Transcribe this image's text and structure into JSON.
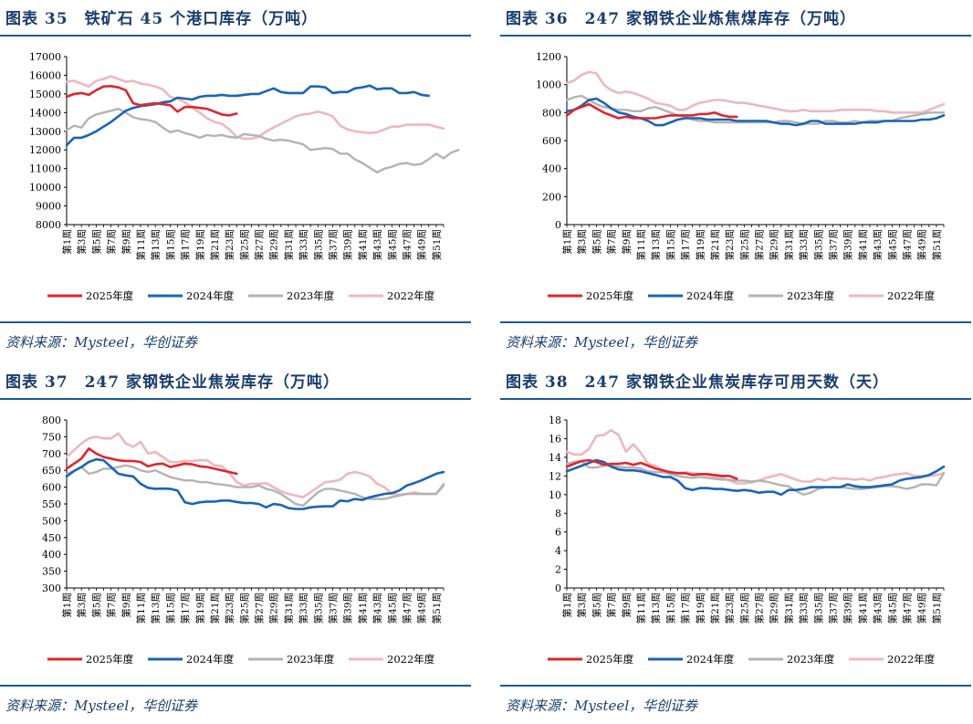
{
  "source_text": "资料来源：Mysteel，华创证券",
  "week_labels": [
    "第1周",
    "第3周",
    "第5周",
    "第7周",
    "第9周",
    "第11周",
    "第13周",
    "第15周",
    "第17周",
    "第19周",
    "第21周",
    "第23周",
    "第25周",
    "第27周",
    "第29周",
    "第31周",
    "第33周",
    "第35周",
    "第37周",
    "第39周",
    "第41周",
    "第43周",
    "第45周",
    "第47周",
    "第49周",
    "第51周"
  ],
  "colors": {
    "2025年度": "#e0252e",
    "2024年度": "#1b64b5",
    "2023年度": "#b3b3b3",
    "2022年度": "#edb8bd"
  },
  "charts": [
    {
      "id": "c35",
      "title": "图表 35　铁矿石 45 个港口库存（万吨）",
      "chart_data": {
        "type": "line",
        "ylim": [
          8000,
          17000
        ],
        "yticks": [
          8000,
          9000,
          10000,
          11000,
          12000,
          13000,
          14000,
          15000,
          16000,
          17000
        ],
        "x": "week 1-52",
        "legend_position": "bottom",
        "series": [
          {
            "name": "2025年度",
            "values": [
              14850,
              15000,
              15050,
              14950,
              15200,
              15400,
              15420,
              15350,
              15200,
              14500,
              14400,
              14450,
              14500,
              14450,
              14400,
              14050,
              14300,
              14300,
              14250,
              14200,
              14050,
              13900,
              13850,
              13950
            ]
          },
          {
            "name": "2024年度",
            "values": [
              12250,
              12650,
              12650,
              12800,
              13000,
              13250,
              13500,
              13800,
              14100,
              14250,
              14350,
              14400,
              14450,
              14550,
              14600,
              14800,
              14750,
              14700,
              14850,
              14900,
              14900,
              14950,
              14900,
              14900,
              14950,
              15000,
              15000,
              15150,
              15300,
              15100,
              15050,
              15050,
              15050,
              15400,
              15400,
              15350,
              15050,
              15100,
              15100,
              15300,
              15350,
              15450,
              15250,
              15300,
              15300,
              15050,
              15050,
              15100,
              14950,
              14900
            ]
          },
          {
            "name": "2023年度",
            "values": [
              13050,
              13300,
              13200,
              13700,
              13900,
              14000,
              14100,
              14200,
              14000,
              13750,
              13650,
              13600,
              13500,
              13200,
              12950,
              13050,
              12900,
              12800,
              12650,
              12800,
              12750,
              12800,
              12700,
              12650,
              12850,
              12800,
              12750,
              12600,
              12500,
              12550,
              12500,
              12400,
              12300,
              12000,
              12050,
              12100,
              12050,
              11800,
              11800,
              11500,
              11300,
              11050,
              10800,
              11000,
              11100,
              11250,
              11300,
              11200,
              11250,
              11500,
              11800,
              11550,
              11850,
              12000
            ]
          },
          {
            "name": "2022年度",
            "values": [
              15650,
              15700,
              15550,
              15400,
              15700,
              15800,
              15950,
              15800,
              15650,
              15700,
              15550,
              15500,
              15400,
              15250,
              14850,
              14750,
              14550,
              14250,
              14000,
              13700,
              13500,
              13400,
              13100,
              12700,
              12600,
              12600,
              12700,
              13000,
              13200,
              13400,
              13600,
              13800,
              13900,
              13950,
              14050,
              13950,
              13800,
              13300,
              13100,
              13000,
              12950,
              12900,
              12950,
              13100,
              13250,
              13250,
              13350,
              13350,
              13350,
              13350,
              13250,
              13150
            ]
          }
        ]
      }
    },
    {
      "id": "c36",
      "title": "图表 36　247 家钢铁企业炼焦煤库存（万吨）",
      "chart_data": {
        "type": "line",
        "ylim": [
          0,
          1200
        ],
        "yticks": [
          0,
          200,
          400,
          600,
          800,
          1000,
          1200
        ],
        "x": "week 1-52",
        "legend_position": "bottom",
        "series": [
          {
            "name": "2025年度",
            "values": [
              780,
              820,
              840,
              860,
              830,
              800,
              780,
              760,
              770,
              760,
              760,
              760,
              760,
              770,
              780,
              780,
              780,
              780,
              790,
              790,
              800,
              780,
              770,
              770
            ]
          },
          {
            "name": "2024年度",
            "values": [
              810,
              820,
              850,
              890,
              900,
              870,
              830,
              800,
              790,
              770,
              760,
              740,
              710,
              710,
              730,
              750,
              760,
              760,
              760,
              750,
              750,
              750,
              750,
              740,
              740,
              740,
              740,
              740,
              730,
              720,
              720,
              710,
              720,
              740,
              740,
              720,
              720,
              720,
              720,
              720,
              730,
              730,
              730,
              740,
              740,
              740,
              740,
              740,
              750,
              750,
              760,
              780
            ]
          },
          {
            "name": "2023年度",
            "values": [
              890,
              910,
              920,
              890,
              860,
              840,
              830,
              820,
              820,
              810,
              810,
              830,
              840,
              820,
              800,
              780,
              770,
              750,
              740,
              740,
              730,
              730,
              730,
              730,
              730,
              730,
              730,
              730,
              730,
              740,
              740,
              730,
              720,
              720,
              720,
              740,
              740,
              730,
              730,
              740,
              730,
              740,
              740,
              740,
              740,
              760,
              770,
              780,
              790,
              800,
              800,
              800
            ]
          },
          {
            "name": "2022年度",
            "values": [
              1010,
              1030,
              1070,
              1090,
              1080,
              1000,
              960,
              940,
              950,
              940,
              920,
              900,
              870,
              860,
              850,
              820,
              820,
              850,
              870,
              880,
              890,
              890,
              880,
              870,
              870,
              860,
              850,
              840,
              830,
              820,
              810,
              810,
              820,
              810,
              810,
              810,
              810,
              820,
              820,
              820,
              820,
              820,
              810,
              810,
              800,
              800,
              800,
              800,
              800,
              820,
              840,
              860
            ]
          }
        ]
      }
    },
    {
      "id": "c37",
      "title": "图表 37　247 家钢铁企业焦炭库存（万吨）",
      "chart_data": {
        "type": "line",
        "ylim": [
          300,
          800
        ],
        "yticks": [
          300,
          350,
          400,
          450,
          500,
          550,
          600,
          650,
          700,
          750,
          800
        ],
        "x": "week 1-52",
        "legend_position": "bottom",
        "series": [
          {
            "name": "2025年度",
            "values": [
              655,
              670,
              685,
              715,
              700,
              690,
              685,
              680,
              678,
              678,
              675,
              662,
              668,
              670,
              660,
              665,
              670,
              668,
              662,
              660,
              655,
              650,
              645,
              640
            ]
          },
          {
            "name": "2024年度",
            "values": [
              632,
              648,
              660,
              675,
              683,
              680,
              660,
              640,
              635,
              632,
              610,
              598,
              595,
              596,
              595,
              590,
              555,
              550,
              555,
              557,
              557,
              560,
              560,
              556,
              553,
              553,
              550,
              540,
              550,
              547,
              538,
              535,
              535,
              540,
              542,
              543,
              543,
              560,
              558,
              565,
              562,
              570,
              575,
              580,
              582,
              590,
              605,
              612,
              620,
              630,
              640,
              645
            ]
          },
          {
            "name": "2023年度",
            "values": [
              640,
              648,
              660,
              640,
              645,
              655,
              655,
              660,
              665,
              660,
              650,
              645,
              650,
              640,
              630,
              625,
              620,
              620,
              615,
              615,
              610,
              608,
              605,
              600,
              600,
              600,
              605,
              595,
              590,
              580,
              565,
              550,
              545,
              565,
              585,
              595,
              595,
              590,
              585,
              580,
              570,
              565,
              565,
              565,
              570,
              575,
              580,
              580,
              580,
              580,
              580,
              605
            ]
          },
          {
            "name": "2022年度",
            "values": [
              690,
              710,
              730,
              745,
              750,
              745,
              745,
              760,
              730,
              720,
              735,
              700,
              705,
              690,
              675,
              675,
              678,
              678,
              680,
              680,
              665,
              663,
              642,
              615,
              605,
              610,
              610,
              612,
              600,
              588,
              580,
              575,
              570,
              585,
              600,
              615,
              617,
              622,
              640,
              645,
              640,
              632,
              610,
              600,
              580,
              578,
              580,
              585,
              580,
              580,
              580,
              610
            ]
          }
        ]
      }
    },
    {
      "id": "c38",
      "title": "图表 38　247 家钢铁企业焦炭库存可用天数（天）",
      "chart_data": {
        "type": "line",
        "ylim": [
          0,
          18
        ],
        "yticks": [
          0,
          2,
          4,
          6,
          8,
          10,
          12,
          14,
          16,
          18
        ],
        "x": "week 1-52",
        "legend_position": "bottom",
        "series": [
          {
            "name": "2025年度",
            "values": [
              13.0,
              13.3,
              13.6,
              13.7,
              13.5,
              13.2,
              13.3,
              13.3,
              13.4,
              13.2,
              13.4,
              13.1,
              12.8,
              12.6,
              12.4,
              12.3,
              12.3,
              12.1,
              12.2,
              12.2,
              12.1,
              12.0,
              12.0,
              11.7
            ]
          },
          {
            "name": "2024年度",
            "values": [
              12.5,
              12.8,
              13.1,
              13.4,
              13.7,
              13.5,
              13.0,
              12.7,
              12.6,
              12.6,
              12.5,
              12.3,
              12.1,
              11.9,
              11.9,
              11.5,
              10.7,
              10.5,
              10.7,
              10.7,
              10.6,
              10.6,
              10.5,
              10.4,
              10.5,
              10.4,
              10.2,
              10.3,
              10.3,
              10.0,
              10.5,
              10.5,
              10.6,
              10.8,
              10.8,
              10.8,
              10.8,
              10.8,
              11.1,
              10.9,
              10.8,
              10.8,
              10.9,
              11.0,
              11.1,
              11.5,
              11.7,
              11.8,
              11.9,
              12.1,
              12.5,
              13.0
            ]
          },
          {
            "name": "2023年度",
            "values": [
              13.3,
              13.5,
              13.6,
              12.9,
              12.9,
              13.1,
              13.1,
              13.0,
              12.9,
              12.9,
              12.8,
              12.5,
              12.4,
              12.4,
              12.2,
              12.0,
              11.9,
              11.8,
              11.9,
              11.8,
              11.7,
              11.6,
              11.6,
              11.5,
              11.5,
              11.4,
              11.5,
              11.4,
              11.2,
              11.0,
              10.9,
              10.4,
              10.0,
              10.2,
              10.6,
              10.8,
              10.8,
              10.8,
              10.7,
              10.6,
              10.6,
              10.7,
              10.8,
              10.9,
              10.9,
              10.8,
              10.6,
              10.8,
              11.1,
              11.1,
              11.0,
              12.3
            ]
          },
          {
            "name": "2022年度",
            "values": [
              14.6,
              14.3,
              14.3,
              14.9,
              16.3,
              16.4,
              16.9,
              16.4,
              14.6,
              15.4,
              14.5,
              13.3,
              13.1,
              12.6,
              12.4,
              12.3,
              12.4,
              12.3,
              12.2,
              12.1,
              11.9,
              11.8,
              11.5,
              11.2,
              11.2,
              11.3,
              11.5,
              11.8,
              12.0,
              12.2,
              11.9,
              11.6,
              11.4,
              11.4,
              11.7,
              11.5,
              11.8,
              11.7,
              11.7,
              11.6,
              11.7,
              11.5,
              11.8,
              11.9,
              12.1,
              12.2,
              12.3,
              12.0,
              12.0,
              12.0,
              12.1,
              12.3
            ]
          }
        ]
      }
    }
  ]
}
